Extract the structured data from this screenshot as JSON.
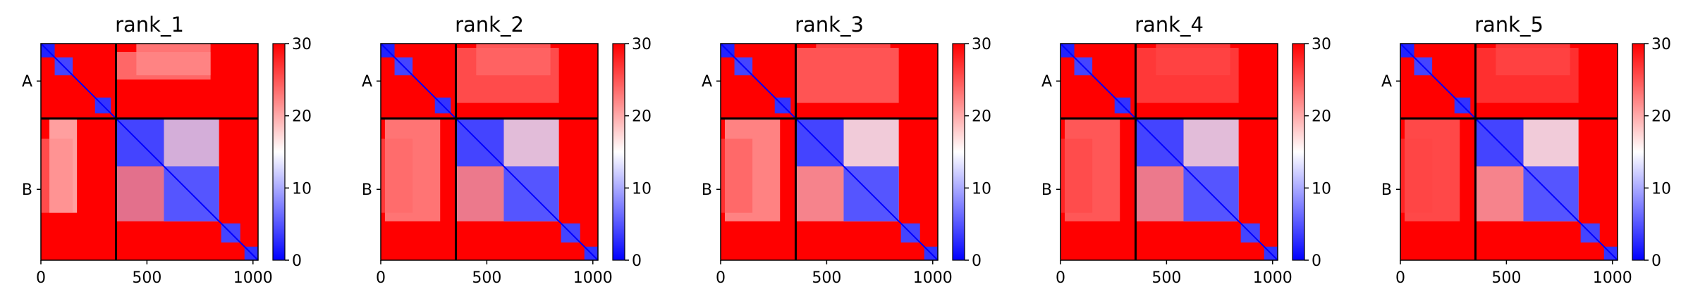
{
  "colors": {
    "low": "#0000ff",
    "mid": "#ffffff",
    "high": "#ff0000",
    "frame": "#000000",
    "chain_divider": "#000000"
  },
  "chart_data": [
    {
      "type": "heatmap",
      "title": "rank_1",
      "xlabel": "",
      "ylabel": "",
      "x_range": [
        0,
        1024
      ],
      "x_ticks": [
        "0",
        "500",
        "1000"
      ],
      "y_tick_labels": [
        "A",
        "B"
      ],
      "chain_boundary": 354,
      "colorbar": {
        "min": 0,
        "max": 30,
        "ticks": [
          "0",
          "10",
          "20",
          "30"
        ]
      },
      "domains": [
        {
          "start": 0,
          "end": 65,
          "value": 2
        },
        {
          "start": 65,
          "end": 150,
          "value": 4
        },
        {
          "start": 255,
          "end": 330,
          "value": 3
        },
        {
          "start": 354,
          "end": 580,
          "value": 4
        },
        {
          "start": 580,
          "end": 840,
          "value": 5
        },
        {
          "start": 850,
          "end": 940,
          "value": 4
        },
        {
          "start": 960,
          "end": 1024,
          "value": 3
        }
      ],
      "interactions": [
        {
          "rows": [
            354,
            800
          ],
          "cols": [
            40,
            170
          ],
          "value": 19
        },
        {
          "rows": [
            0,
            150
          ],
          "cols": [
            450,
            800
          ],
          "value": 22
        },
        {
          "rows": [
            354,
            840
          ],
          "cols": [
            580,
            840
          ],
          "value": 12
        }
      ]
    },
    {
      "type": "heatmap",
      "title": "rank_2",
      "xlabel": "",
      "ylabel": "",
      "x_range": [
        0,
        1024
      ],
      "x_ticks": [
        "0",
        "500",
        "1000"
      ],
      "y_tick_labels": [
        "A",
        "B"
      ],
      "chain_boundary": 354,
      "colorbar": {
        "min": 0,
        "max": 30,
        "ticks": [
          "0",
          "10",
          "20",
          "30"
        ]
      },
      "domains": [
        {
          "start": 0,
          "end": 65,
          "value": 2
        },
        {
          "start": 65,
          "end": 150,
          "value": 4
        },
        {
          "start": 255,
          "end": 330,
          "value": 3
        },
        {
          "start": 354,
          "end": 580,
          "value": 4
        },
        {
          "start": 580,
          "end": 840,
          "value": 5
        },
        {
          "start": 850,
          "end": 940,
          "value": 4
        },
        {
          "start": 960,
          "end": 1024,
          "value": 3
        }
      ],
      "interactions": [
        {
          "rows": [
            354,
            840
          ],
          "cols": [
            20,
            280
          ],
          "value": 22
        },
        {
          "rows": [
            0,
            150
          ],
          "cols": [
            450,
            800
          ],
          "value": 24
        },
        {
          "rows": [
            354,
            840
          ],
          "cols": [
            580,
            840
          ],
          "value": 13
        }
      ]
    },
    {
      "type": "heatmap",
      "title": "rank_3",
      "xlabel": "",
      "ylabel": "",
      "x_range": [
        0,
        1024
      ],
      "x_ticks": [
        "0",
        "500",
        "1000"
      ],
      "y_tick_labels": [
        "A",
        "B"
      ],
      "chain_boundary": 354,
      "colorbar": {
        "min": 0,
        "max": 30,
        "ticks": [
          "0",
          "10",
          "20",
          "30"
        ]
      },
      "domains": [
        {
          "start": 0,
          "end": 65,
          "value": 2
        },
        {
          "start": 65,
          "end": 150,
          "value": 4
        },
        {
          "start": 255,
          "end": 330,
          "value": 3
        },
        {
          "start": 354,
          "end": 580,
          "value": 4
        },
        {
          "start": 580,
          "end": 840,
          "value": 5
        },
        {
          "start": 850,
          "end": 940,
          "value": 4
        },
        {
          "start": 960,
          "end": 1024,
          "value": 3
        }
      ],
      "interactions": [
        {
          "rows": [
            354,
            840
          ],
          "cols": [
            20,
            280
          ],
          "value": 21
        },
        {
          "rows": [
            0,
            150
          ],
          "cols": [
            450,
            800
          ],
          "value": 25
        },
        {
          "rows": [
            354,
            840
          ],
          "cols": [
            580,
            840
          ],
          "value": 14
        }
      ]
    },
    {
      "type": "heatmap",
      "title": "rank_4",
      "xlabel": "",
      "ylabel": "",
      "x_range": [
        0,
        1024
      ],
      "x_ticks": [
        "0",
        "500",
        "1000"
      ],
      "y_tick_labels": [
        "A",
        "B"
      ],
      "chain_boundary": 354,
      "colorbar": {
        "min": 0,
        "max": 30,
        "ticks": [
          "0",
          "10",
          "20",
          "30"
        ]
      },
      "domains": [
        {
          "start": 0,
          "end": 65,
          "value": 2
        },
        {
          "start": 65,
          "end": 150,
          "value": 4
        },
        {
          "start": 255,
          "end": 330,
          "value": 3
        },
        {
          "start": 354,
          "end": 580,
          "value": 4
        },
        {
          "start": 580,
          "end": 840,
          "value": 5
        },
        {
          "start": 850,
          "end": 940,
          "value": 4
        },
        {
          "start": 960,
          "end": 1024,
          "value": 3
        }
      ],
      "interactions": [
        {
          "rows": [
            354,
            840
          ],
          "cols": [
            20,
            280
          ],
          "value": 24
        },
        {
          "rows": [
            0,
            150
          ],
          "cols": [
            450,
            800
          ],
          "value": 26
        },
        {
          "rows": [
            354,
            840
          ],
          "cols": [
            580,
            840
          ],
          "value": 13
        }
      ]
    },
    {
      "type": "heatmap",
      "title": "rank_5",
      "xlabel": "",
      "ylabel": "",
      "x_range": [
        0,
        1024
      ],
      "x_ticks": [
        "0",
        "500",
        "1000"
      ],
      "y_tick_labels": [
        "A",
        "B"
      ],
      "chain_boundary": 354,
      "colorbar": {
        "min": 0,
        "max": 30,
        "ticks": [
          "0",
          "10",
          "20",
          "30"
        ]
      },
      "domains": [
        {
          "start": 0,
          "end": 65,
          "value": 2
        },
        {
          "start": 65,
          "end": 150,
          "value": 4
        },
        {
          "start": 255,
          "end": 330,
          "value": 3
        },
        {
          "start": 354,
          "end": 580,
          "value": 4
        },
        {
          "start": 580,
          "end": 840,
          "value": 5
        },
        {
          "start": 850,
          "end": 940,
          "value": 4
        },
        {
          "start": 960,
          "end": 1024,
          "value": 3
        }
      ],
      "interactions": [
        {
          "rows": [
            354,
            840
          ],
          "cols": [
            20,
            280
          ],
          "value": 25
        },
        {
          "rows": [
            0,
            150
          ],
          "cols": [
            450,
            800
          ],
          "value": 26
        },
        {
          "rows": [
            354,
            840
          ],
          "cols": [
            580,
            840
          ],
          "value": 14
        }
      ]
    }
  ]
}
